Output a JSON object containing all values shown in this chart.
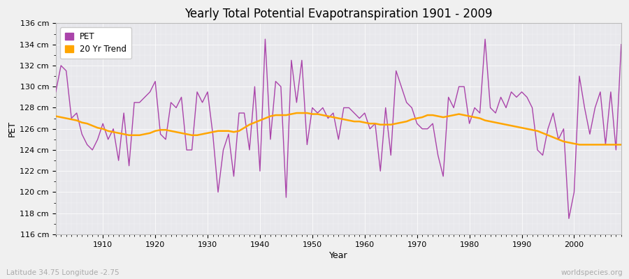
{
  "title": "Yearly Total Potential Evapotranspiration 1901 - 2009",
  "xlabel": "Year",
  "ylabel": "PET",
  "subtitle_left": "Latitude 34.75 Longitude -2.75",
  "subtitle_right": "worldspecies.org",
  "pet_color": "#AA44AA",
  "trend_color": "#FFA500",
  "bg_color": "#F0F0F0",
  "plot_bg_color": "#E8E8EC",
  "ylim": [
    116,
    136
  ],
  "ytick_labels": [
    "116 cm",
    "118 cm",
    "120 cm",
    "122 cm",
    "124 cm",
    "126 cm",
    "128 cm",
    "130 cm",
    "132 cm",
    "134 cm",
    "136 cm"
  ],
  "ytick_values": [
    116,
    118,
    120,
    122,
    124,
    126,
    128,
    130,
    132,
    134,
    136
  ],
  "years": [
    1901,
    1902,
    1903,
    1904,
    1905,
    1906,
    1907,
    1908,
    1909,
    1910,
    1911,
    1912,
    1913,
    1914,
    1915,
    1916,
    1917,
    1918,
    1919,
    1920,
    1921,
    1922,
    1923,
    1924,
    1925,
    1926,
    1927,
    1928,
    1929,
    1930,
    1931,
    1932,
    1933,
    1934,
    1935,
    1936,
    1937,
    1938,
    1939,
    1940,
    1941,
    1942,
    1943,
    1944,
    1945,
    1946,
    1947,
    1948,
    1949,
    1950,
    1951,
    1952,
    1953,
    1954,
    1955,
    1956,
    1957,
    1958,
    1959,
    1960,
    1961,
    1962,
    1963,
    1964,
    1965,
    1966,
    1967,
    1968,
    1969,
    1970,
    1971,
    1972,
    1973,
    1974,
    1975,
    1976,
    1977,
    1978,
    1979,
    1980,
    1981,
    1982,
    1983,
    1984,
    1985,
    1986,
    1987,
    1988,
    1989,
    1990,
    1991,
    1992,
    1993,
    1994,
    1995,
    1996,
    1997,
    1998,
    1999,
    2000,
    2001,
    2002,
    2003,
    2004,
    2005,
    2006,
    2007,
    2008,
    2009
  ],
  "pet_values": [
    129.5,
    132.0,
    131.5,
    127.0,
    127.5,
    125.5,
    124.5,
    124.0,
    125.0,
    126.5,
    125.0,
    126.0,
    123.0,
    127.5,
    122.5,
    128.5,
    128.5,
    129.0,
    129.5,
    130.5,
    125.5,
    125.0,
    128.5,
    128.0,
    129.0,
    124.0,
    124.0,
    129.5,
    128.5,
    129.5,
    125.5,
    120.0,
    124.0,
    125.5,
    121.5,
    127.5,
    127.5,
    124.0,
    130.0,
    122.0,
    134.5,
    125.0,
    130.5,
    130.0,
    119.5,
    132.5,
    128.5,
    132.5,
    124.5,
    128.0,
    127.5,
    128.0,
    127.0,
    127.5,
    125.0,
    128.0,
    128.0,
    127.5,
    127.0,
    127.5,
    126.0,
    126.5,
    122.0,
    128.0,
    123.5,
    131.5,
    130.0,
    128.5,
    128.0,
    126.5,
    126.0,
    126.0,
    126.5,
    123.5,
    121.5,
    129.0,
    128.0,
    130.0,
    130.0,
    126.5,
    128.0,
    127.5,
    134.5,
    128.0,
    127.5,
    129.0,
    128.0,
    129.5,
    129.0,
    129.5,
    129.0,
    128.0,
    124.0,
    123.5,
    126.0,
    127.5,
    125.0,
    126.0,
    117.5,
    120.0,
    131.0,
    128.0,
    125.5,
    128.0,
    129.5,
    124.5,
    129.5,
    124.0,
    134.0
  ],
  "trend_values": [
    127.2,
    127.1,
    127.0,
    126.9,
    126.8,
    126.6,
    126.5,
    126.3,
    126.1,
    126.0,
    125.8,
    125.7,
    125.6,
    125.5,
    125.4,
    125.4,
    125.4,
    125.5,
    125.6,
    125.8,
    125.9,
    125.9,
    125.8,
    125.7,
    125.6,
    125.5,
    125.4,
    125.4,
    125.5,
    125.6,
    125.7,
    125.8,
    125.8,
    125.8,
    125.7,
    125.8,
    126.1,
    126.4,
    126.6,
    126.8,
    127.0,
    127.2,
    127.3,
    127.3,
    127.3,
    127.4,
    127.5,
    127.5,
    127.5,
    127.4,
    127.4,
    127.3,
    127.2,
    127.1,
    127.0,
    126.9,
    126.8,
    126.7,
    126.7,
    126.6,
    126.5,
    126.5,
    126.4,
    126.4,
    126.4,
    126.5,
    126.6,
    126.7,
    126.9,
    127.0,
    127.1,
    127.3,
    127.3,
    127.2,
    127.1,
    127.2,
    127.3,
    127.4,
    127.3,
    127.2,
    127.1,
    127.0,
    126.8,
    126.7,
    126.6,
    126.5,
    126.4,
    126.3,
    126.2,
    126.1,
    126.0,
    125.9,
    125.8,
    125.6,
    125.4,
    125.2,
    125.0,
    124.8,
    124.7,
    124.6,
    124.5,
    124.5,
    124.5,
    124.5,
    124.5,
    124.5,
    124.5,
    124.5,
    124.5
  ]
}
